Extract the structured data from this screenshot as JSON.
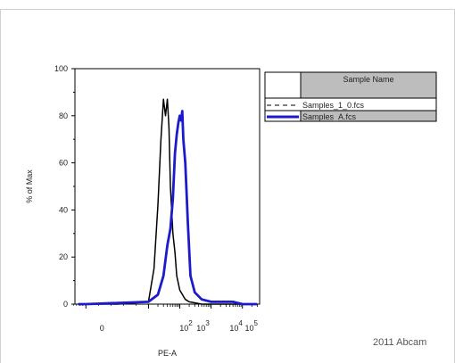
{
  "chart_data": {
    "type": "line",
    "xlabel": "PE-A",
    "ylabel": "% of Max",
    "yticks": [
      0,
      20,
      40,
      60,
      80,
      100
    ],
    "ylim": [
      0,
      100
    ],
    "xscale": "log",
    "xtick_labels": [
      {
        "base": "0",
        "exp": ""
      },
      {
        "base": "10",
        "exp": "2"
      },
      {
        "base": "10",
        "exp": "3"
      },
      {
        "base": "10",
        "exp": "4"
      },
      {
        "base": "10",
        "exp": "5"
      }
    ],
    "legend": {
      "header": "Sample Name",
      "placement": "right"
    },
    "series": [
      {
        "name": "Samples_1_0.fcs",
        "color": "#000000",
        "style": "solid-dashed-peak",
        "x": [
          -50,
          0,
          50,
          100,
          150,
          200,
          250,
          300,
          350,
          400,
          450,
          500,
          550,
          600,
          700,
          800,
          1000,
          1500,
          2000,
          5000,
          10000,
          100000,
          300000
        ],
        "y": [
          0,
          0,
          0,
          1,
          15,
          42,
          70,
          87,
          80,
          87,
          75,
          50,
          40,
          30,
          22,
          12,
          6,
          2,
          1,
          0,
          0,
          0,
          0
        ]
      },
      {
        "name": "Samples_A.fcs",
        "color": "#1b1bcc",
        "style": "solid-thick",
        "x": [
          -50,
          0,
          100,
          200,
          300,
          400,
          500,
          600,
          700,
          800,
          900,
          1000,
          1100,
          1200,
          1300,
          1500,
          1800,
          2200,
          3000,
          5000,
          10000,
          50000,
          100000,
          300000
        ],
        "y": [
          0,
          0,
          1,
          4,
          12,
          25,
          32,
          45,
          64,
          72,
          77,
          80,
          78,
          82,
          70,
          60,
          35,
          12,
          5,
          2,
          1,
          1,
          0,
          0
        ]
      }
    ]
  },
  "credit": "2011 Abcam"
}
